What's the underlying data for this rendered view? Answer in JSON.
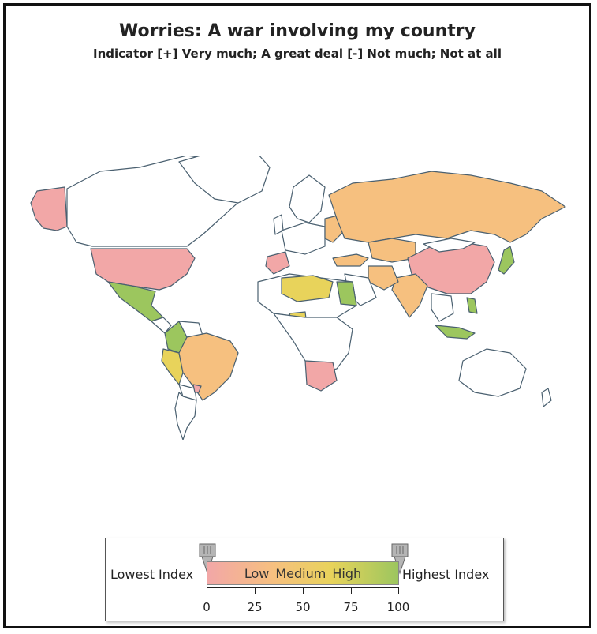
{
  "title": "Worries: A war involving my country",
  "subtitle": "Indicator [+] Very much; A great deal [-] Not much; Not at all",
  "legend": {
    "left_label": "Lowest Index",
    "right_label": "Highest Index",
    "scale_labels": [
      "Low",
      "Medium",
      "High"
    ],
    "ticks": [
      "0",
      "25",
      "50",
      "75",
      "100"
    ],
    "range": [
      0,
      100
    ]
  },
  "colors": {
    "low": "#f2a7a7",
    "medium_low": "#f6c07f",
    "medium": "#e8d35b",
    "high": "#9cc65e",
    "no_data": "#ffffff",
    "border": "#4a6070"
  },
  "map": {
    "regions": [
      {
        "name": "Alaska",
        "level": "low"
      },
      {
        "name": "United States",
        "level": "low"
      },
      {
        "name": "Mexico",
        "level": "high"
      },
      {
        "name": "Colombia",
        "level": "high"
      },
      {
        "name": "Ecuador",
        "level": "medium"
      },
      {
        "name": "Peru",
        "level": "medium"
      },
      {
        "name": "Brazil",
        "level": "medium_low"
      },
      {
        "name": "Argentina",
        "level": "low"
      },
      {
        "name": "Spain",
        "level": "low"
      },
      {
        "name": "Russia",
        "level": "medium_low"
      },
      {
        "name": "China",
        "level": "low"
      },
      {
        "name": "India",
        "level": "medium_low"
      },
      {
        "name": "Japan",
        "level": "high"
      },
      {
        "name": "Algeria",
        "level": "medium"
      },
      {
        "name": "Libya",
        "level": "medium"
      },
      {
        "name": "Egypt",
        "level": "medium"
      },
      {
        "name": "Nigeria",
        "level": "medium"
      },
      {
        "name": "South Africa",
        "level": "low"
      },
      {
        "name": "Turkey",
        "level": "medium_low"
      },
      {
        "name": "Iran",
        "level": "medium_low"
      },
      {
        "name": "Indonesia",
        "level": "high"
      },
      {
        "name": "Philippines",
        "level": "high"
      },
      {
        "name": "Kazakhstan",
        "level": "medium_low"
      }
    ]
  }
}
